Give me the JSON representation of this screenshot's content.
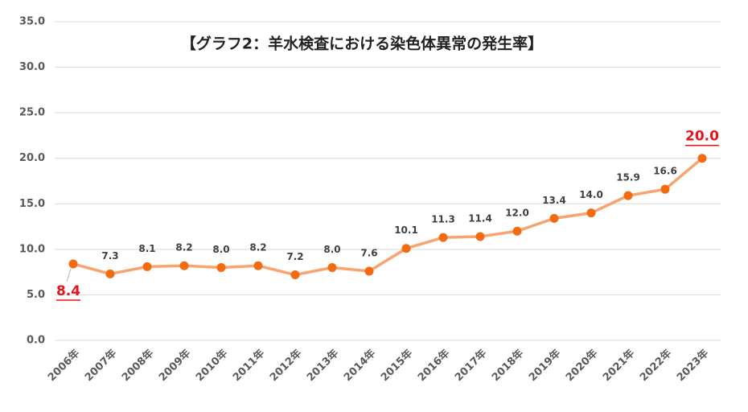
{
  "chart_data": {
    "type": "line",
    "title": "【グラフ2：羊水検査における染色体異常の発生率】",
    "categories": [
      "2006年",
      "2007年",
      "2008年",
      "2009年",
      "2010年",
      "2011年",
      "2012年",
      "2013年",
      "2014年",
      "2015年",
      "2016年",
      "2017年",
      "2018年",
      "2019年",
      "2020年",
      "2021年",
      "2022年",
      "2023年"
    ],
    "series": [
      {
        "color": "#f9a470",
        "marker_color": "#f26b10",
        "values": [
          8.4,
          7.3,
          8.1,
          8.2,
          8.0,
          8.2,
          7.2,
          8.0,
          7.6,
          10.1,
          11.3,
          11.4,
          12.0,
          13.4,
          14.0,
          15.9,
          16.6,
          20.0
        ],
        "value_labels": [
          "8.4",
          "7.3",
          "8.1",
          "8.2",
          "8.0",
          "8.2",
          "7.2",
          "8.0",
          "7.6",
          "10.1",
          "11.3",
          "11.4",
          "12.0",
          "13.4",
          "14.0",
          "15.9",
          "16.6",
          "20.0"
        ]
      }
    ],
    "ylim": [
      0,
      35
    ],
    "yticks": [
      {
        "value": 0,
        "label": "0.0"
      },
      {
        "value": 5,
        "label": "5.0"
      },
      {
        "value": 10,
        "label": "10.0"
      },
      {
        "value": 15,
        "label": "15.0"
      },
      {
        "value": 20,
        "label": "20.0"
      },
      {
        "value": 25,
        "label": "25.0"
      },
      {
        "value": 30,
        "label": "30.0"
      },
      {
        "value": 35,
        "label": "35.0"
      }
    ],
    "grid": true
  }
}
